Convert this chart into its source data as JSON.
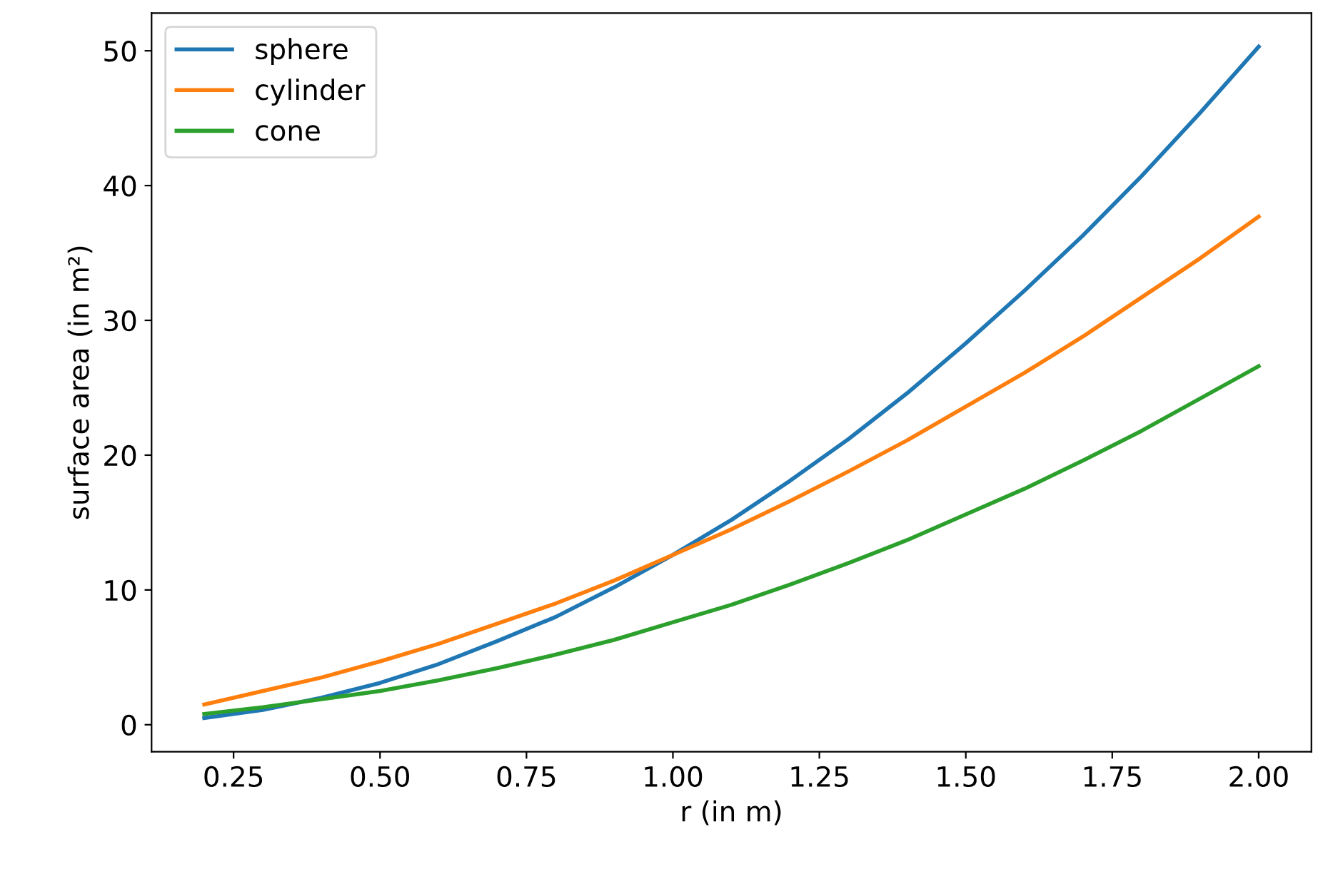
{
  "chart_data": {
    "type": "line",
    "xlabel": "r (in m)",
    "ylabel": "surface area (in m²)",
    "x": [
      0.2,
      0.3,
      0.4,
      0.5,
      0.6,
      0.7,
      0.8,
      0.9,
      1.0,
      1.1,
      1.2,
      1.3,
      1.4,
      1.5,
      1.6,
      1.7,
      1.8,
      1.9,
      2.0
    ],
    "series": [
      {
        "name": "sphere",
        "color": "#1f77b4",
        "values": [
          0.5,
          1.1,
          2.0,
          3.1,
          4.5,
          6.2,
          8.0,
          10.2,
          12.6,
          15.2,
          18.1,
          21.2,
          24.6,
          28.3,
          32.2,
          36.3,
          40.7,
          45.4,
          50.3
        ]
      },
      {
        "name": "cylinder",
        "color": "#ff7f0e",
        "values": [
          1.5,
          2.5,
          3.5,
          4.7,
          6.0,
          7.5,
          9.0,
          10.7,
          12.6,
          14.5,
          16.6,
          18.8,
          21.1,
          23.6,
          26.1,
          28.8,
          31.7,
          34.6,
          37.7
        ]
      },
      {
        "name": "cone",
        "color": "#2ca02c",
        "values": [
          0.8,
          1.3,
          1.9,
          2.5,
          3.3,
          4.2,
          5.2,
          6.3,
          7.6,
          8.9,
          10.4,
          12.0,
          13.7,
          15.6,
          17.5,
          19.6,
          21.8,
          24.2,
          26.6
        ]
      }
    ],
    "xlim": [
      0.11,
      2.09
    ],
    "ylim": [
      -2.0,
      52.8
    ],
    "xticks": [
      {
        "value": 0.25,
        "label": "0.25"
      },
      {
        "value": 0.5,
        "label": "0.50"
      },
      {
        "value": 0.75,
        "label": "0.75"
      },
      {
        "value": 1.0,
        "label": "1.00"
      },
      {
        "value": 1.25,
        "label": "1.25"
      },
      {
        "value": 1.5,
        "label": "1.50"
      },
      {
        "value": 1.75,
        "label": "1.75"
      },
      {
        "value": 2.0,
        "label": "2.00"
      }
    ],
    "yticks": [
      0,
      10,
      20,
      30,
      40,
      50
    ],
    "grid": false,
    "legend": "top left",
    "marker": "none",
    "line_style": "solid"
  }
}
